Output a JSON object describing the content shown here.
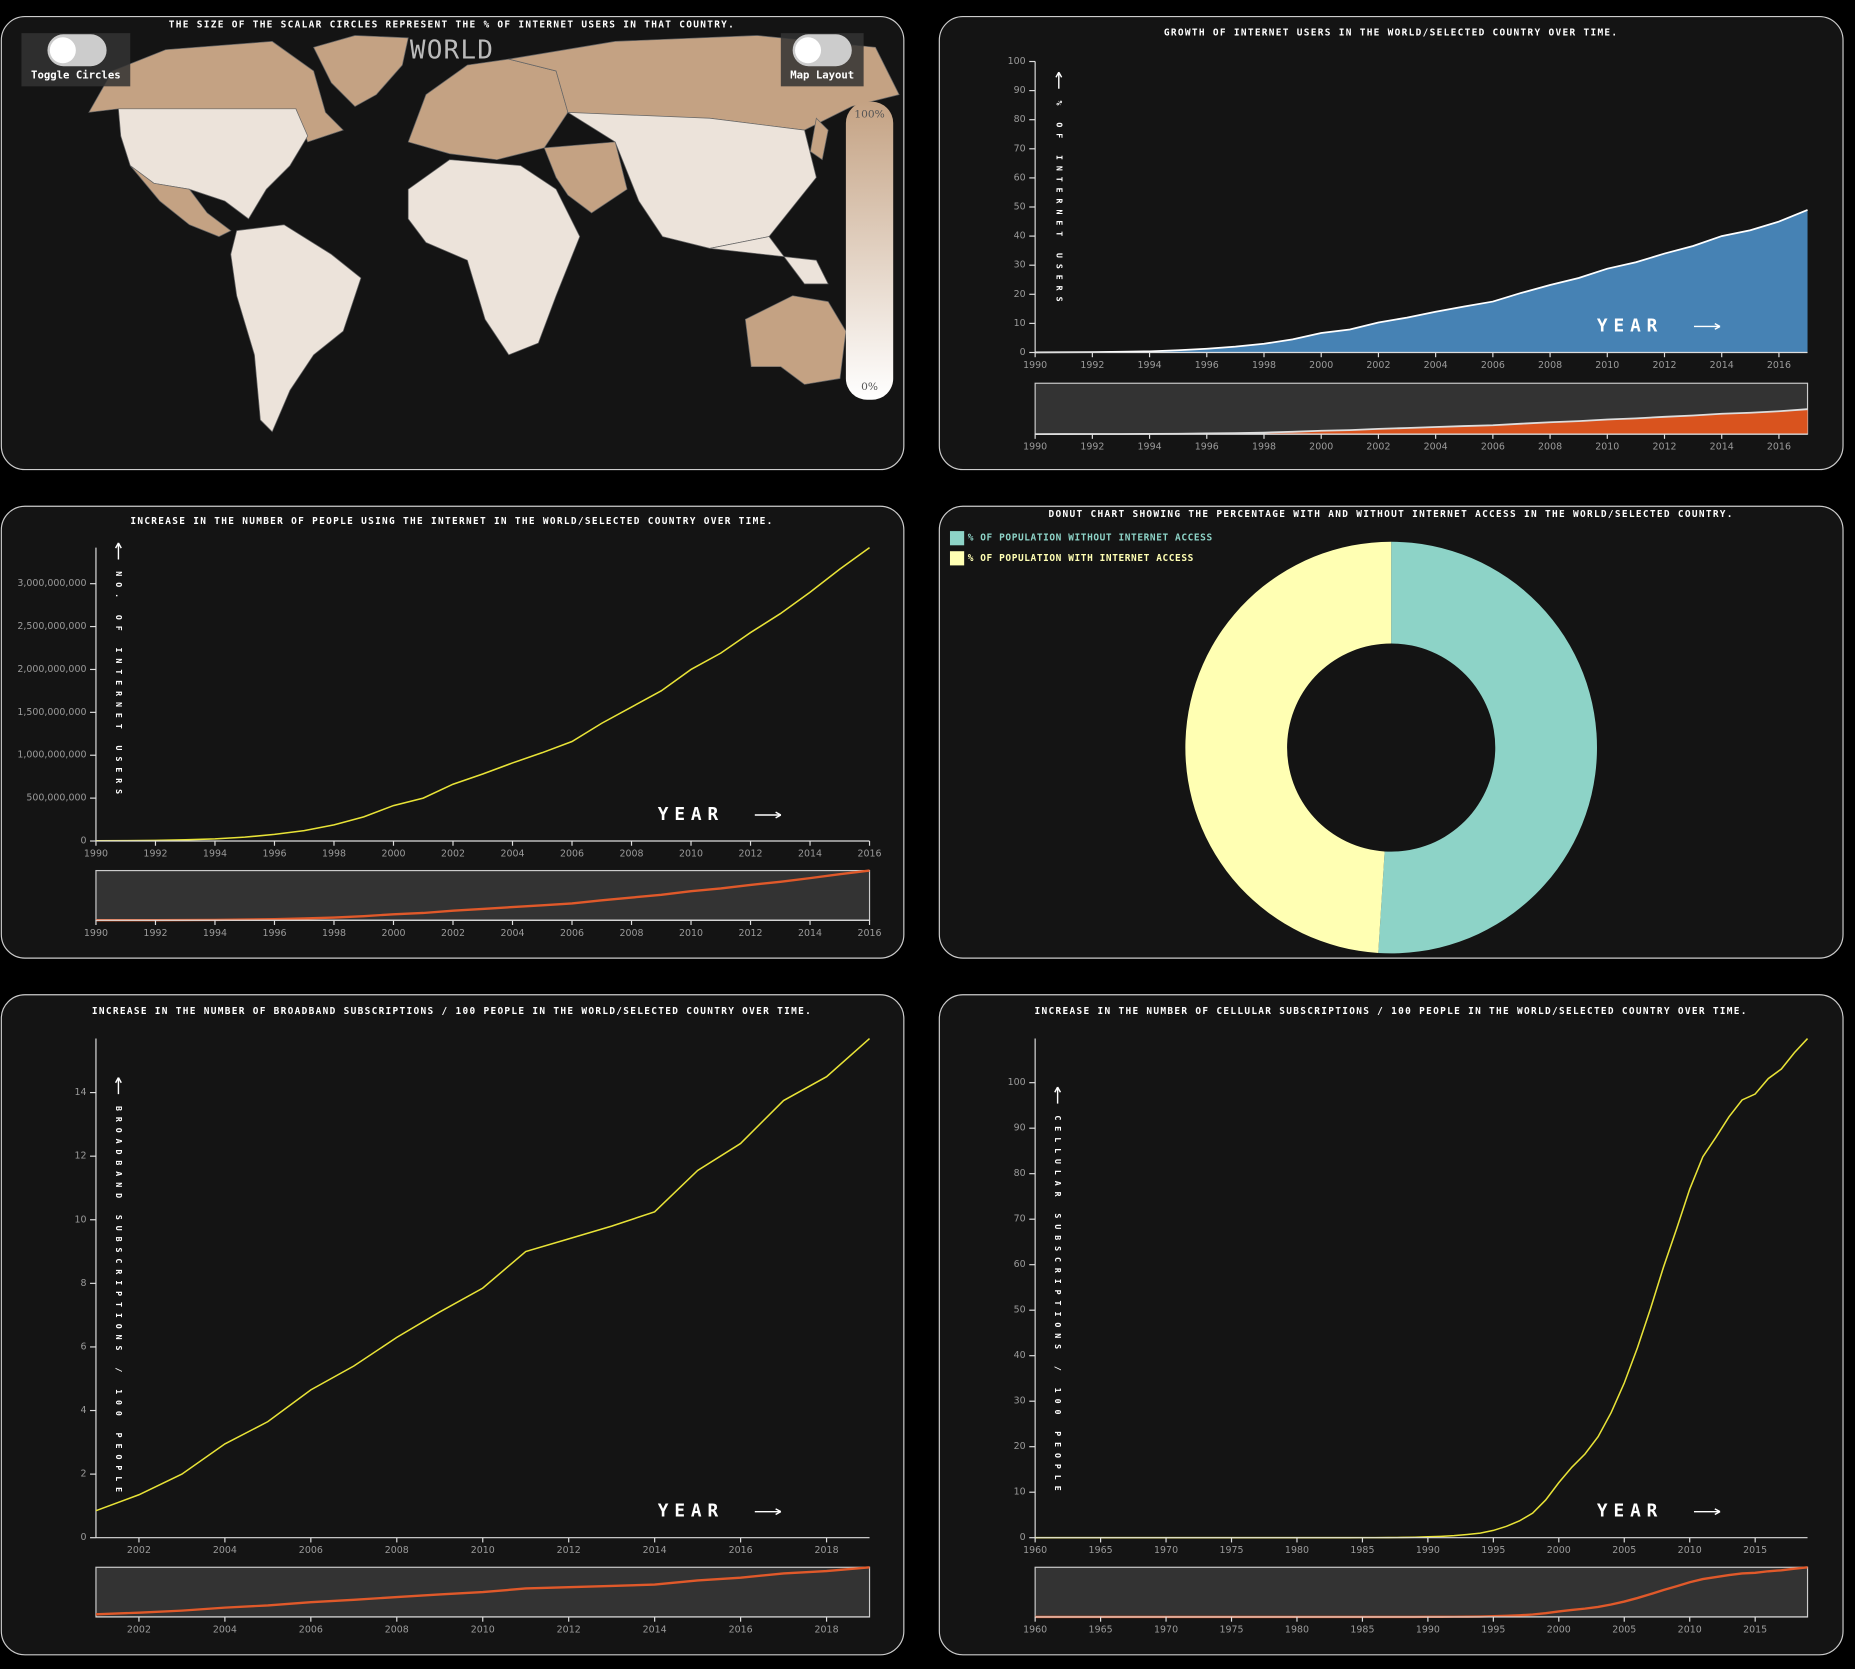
{
  "map_panel": {
    "title": "THE SIZE OF THE SCALAR CIRCLES REPRESENT THE % OF INTERNET USERS IN THAT COUNTRY.",
    "region": "WORLD",
    "toggle_circles": "Toggle Circles",
    "map_layout": "Map Layout",
    "legend_max": "100%",
    "legend_min": "0%"
  },
  "chart_data": [
    {
      "type": "area",
      "title": "GROWTH OF INTERNET USERS IN THE WORLD/SELECTED COUNTRY OVER TIME.",
      "x_label": "YEAR",
      "y_label": "% OF INTERNET USERS",
      "x": [
        1990,
        1991,
        1992,
        1993,
        1994,
        1995,
        1996,
        1997,
        1998,
        1999,
        2000,
        2001,
        2002,
        2003,
        2004,
        2005,
        2006,
        2007,
        2008,
        2009,
        2010,
        2011,
        2012,
        2013,
        2014,
        2015,
        2016,
        2017
      ],
      "values": [
        0.05,
        0.08,
        0.13,
        0.25,
        0.4,
        0.75,
        1.3,
        2.0,
        3.0,
        4.5,
        6.7,
        7.9,
        10.3,
        12.0,
        14.0,
        15.8,
        17.5,
        20.5,
        23.2,
        25.6,
        28.8,
        31.0,
        34.0,
        36.6,
        40.0,
        42.0,
        45.0,
        49.0
      ],
      "color": "#4682b4",
      "brush_color": "#d9531e",
      "xlim": [
        1990,
        2017
      ],
      "ylim": [
        0,
        100
      ],
      "xticks": [
        1990,
        1992,
        1994,
        1996,
        1998,
        2000,
        2002,
        2004,
        2006,
        2008,
        2010,
        2012,
        2014,
        2016
      ],
      "yticks": [
        0,
        10,
        20,
        30,
        40,
        50,
        60,
        70,
        80,
        90,
        100
      ]
    },
    {
      "type": "line",
      "title": "INCREASE IN THE NUMBER OF PEOPLE USING THE INTERNET IN THE WORLD/SELECTED COUNTRY OVER TIME.",
      "x_label": "YEAR",
      "y_label": "NO. OF INTERNET USERS",
      "x": [
        1990,
        1991,
        1992,
        1993,
        1994,
        1995,
        1996,
        1997,
        1998,
        1999,
        2000,
        2001,
        2002,
        2003,
        2004,
        2005,
        2006,
        2007,
        2008,
        2009,
        2010,
        2011,
        2012,
        2013,
        2014,
        2015,
        2016
      ],
      "values": [
        2600000,
        4400000,
        7000000,
        14000000,
        25000000,
        45000000,
        77000000,
        121000000,
        188000000,
        281000000,
        413000000,
        500000000,
        662000000,
        781000000,
        910000000,
        1030000000,
        1160000000,
        1373000000,
        1562000000,
        1751000000,
        2000000000,
        2190000000,
        2430000000,
        2650000000,
        2900000000,
        3170000000,
        3420000000
      ],
      "color": "#e8e337",
      "brush_color": "#e0592a",
      "xlim": [
        1990,
        2016
      ],
      "ylim": [
        0,
        3420000000
      ],
      "xticks": [
        1990,
        1992,
        1994,
        1996,
        1998,
        2000,
        2002,
        2004,
        2006,
        2008,
        2010,
        2012,
        2014,
        2016
      ],
      "yticks": [
        0,
        {
          "value": 500000000,
          "label": "500,000,000"
        },
        {
          "value": 1000000000,
          "label": "1,000,000,000"
        },
        {
          "value": 1500000000,
          "label": "1,500,000,000"
        },
        {
          "value": 2000000000,
          "label": "2,000,000,000"
        },
        {
          "value": 2500000000,
          "label": "2,500,000,000"
        },
        {
          "value": 3000000000,
          "label": "3,000,000,000"
        }
      ]
    },
    {
      "type": "pie",
      "donut": true,
      "title": "DONUT CHART SHOWING THE PERCENTAGE WITH AND WITHOUT INTERNET ACCESS IN THE WORLD/SELECTED COUNTRY.",
      "categories": [
        "% OF POPULATION WITHOUT INTERNET ACCESS",
        "% OF POPULATION WITH INTERNET ACCESS"
      ],
      "values": [
        51.0,
        49.0
      ],
      "colors": [
        "#8dd3c7",
        "#ffffb3"
      ]
    },
    {
      "type": "line",
      "title": "INCREASE IN THE NUMBER OF BROADBAND SUBSCRIPTIONS / 100 PEOPLE IN THE WORLD/SELECTED COUNTRY OVER TIME.",
      "x_label": "YEAR",
      "y_label": "BROADBAND SUBSCRIPTIONS / 100 PEOPLE",
      "x": [
        2001,
        2002,
        2003,
        2004,
        2005,
        2006,
        2007,
        2008,
        2009,
        2010,
        2011,
        2012,
        2013,
        2014,
        2015,
        2016,
        2017,
        2018,
        2019
      ],
      "values": [
        0.85,
        1.35,
        2.0,
        2.95,
        3.65,
        4.65,
        5.4,
        6.3,
        7.1,
        7.85,
        9.0,
        9.4,
        9.8,
        10.25,
        11.55,
        12.4,
        13.75,
        14.5,
        15.7
      ],
      "color": "#e8e337",
      "brush_color": "#e0592a",
      "xlim": [
        2001,
        2019
      ],
      "ylim": [
        0,
        15.7
      ],
      "xticks": [
        2002,
        2004,
        2006,
        2008,
        2010,
        2012,
        2014,
        2016,
        2018
      ],
      "yticks": [
        0,
        2,
        4,
        6,
        8,
        10,
        12,
        14
      ]
    },
    {
      "type": "line",
      "title": "INCREASE IN THE NUMBER OF CELLULAR SUBSCRIPTIONS / 100 PEOPLE IN THE WORLD/SELECTED COUNTRY OVER TIME.",
      "x_label": "YEAR",
      "y_label": "CELLULAR SUBSCRIPTIONS / 100 PEOPLE",
      "x": [
        1960,
        1961,
        1962,
        1963,
        1964,
        1965,
        1966,
        1967,
        1968,
        1969,
        1970,
        1971,
        1972,
        1973,
        1974,
        1975,
        1976,
        1977,
        1978,
        1979,
        1980,
        1981,
        1982,
        1983,
        1984,
        1985,
        1986,
        1987,
        1988,
        1989,
        1990,
        1991,
        1992,
        1993,
        1994,
        1995,
        1996,
        1997,
        1998,
        1999,
        2000,
        2001,
        2002,
        2003,
        2004,
        2005,
        2006,
        2007,
        2008,
        2009,
        2010,
        2011,
        2012,
        2013,
        2014,
        2015,
        2016,
        2017,
        2018,
        2019
      ],
      "values": [
        0,
        0,
        0,
        0,
        0,
        0,
        0,
        0,
        0,
        0,
        0,
        0,
        0,
        0,
        0,
        0,
        0,
        0,
        0,
        0,
        0,
        0,
        0,
        0,
        0,
        0.01,
        0.02,
        0.03,
        0.06,
        0.1,
        0.2,
        0.3,
        0.45,
        0.7,
        1.0,
        1.6,
        2.5,
        3.7,
        5.4,
        8.3,
        12.1,
        15.5,
        18.4,
        22.2,
        27.5,
        34.0,
        41.7,
        50.3,
        59.5,
        67.9,
        76.6,
        83.7,
        88.0,
        92.5,
        96.2,
        97.5,
        100.9,
        103.0,
        106.6,
        109.7
      ],
      "color": "#e8e337",
      "brush_color": "#e0592a",
      "xlim": [
        1960,
        2019
      ],
      "ylim": [
        0,
        109.7
      ],
      "xticks": [
        1960,
        1965,
        1970,
        1975,
        1980,
        1985,
        1990,
        1995,
        2000,
        2005,
        2010,
        2015
      ],
      "yticks": [
        0,
        10,
        20,
        30,
        40,
        50,
        60,
        70,
        80,
        90,
        100
      ]
    }
  ]
}
